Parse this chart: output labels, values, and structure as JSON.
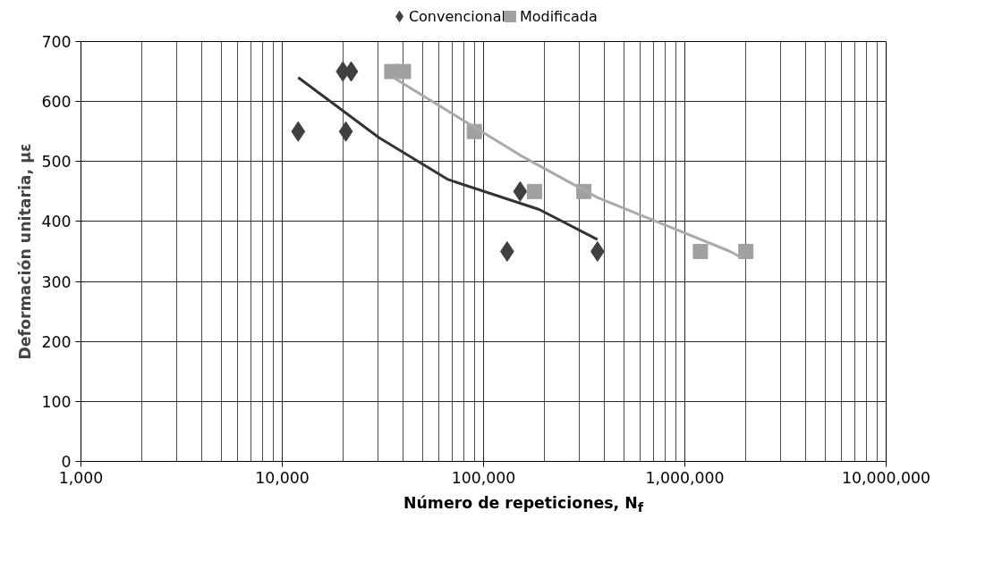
{
  "chart_data": {
    "type": "scatter",
    "xlabel": "Número de repeticiones, N$_{f}$",
    "ylabel": "Deformación unitaria, με",
    "log": "x",
    "grid": true,
    "legend": "top",
    "xlim": [
      1000,
      10000000
    ],
    "ylim": [
      0,
      700
    ],
    "xticks": [
      {
        "value": 1000,
        "label": "1,000"
      },
      {
        "value": 10000,
        "label": "10,000"
      },
      {
        "value": 100000,
        "label": "100,000"
      },
      {
        "value": 1000000,
        "label": "1,000,000"
      },
      {
        "value": 10000000,
        "label": "10,000,000"
      }
    ],
    "yticks": [
      0,
      100,
      200,
      300,
      400,
      500,
      600,
      700
    ],
    "series": [
      {
        "name": "Convencional",
        "color": "#404040",
        "marker": "diamond",
        "x": [
          12000,
          20000,
          22000,
          20700,
          152000,
          131000,
          368000
        ],
        "values": [
          550,
          650,
          650,
          550,
          450,
          350,
          350
        ]
      },
      {
        "name": "Modificada",
        "color": "#a0a0a0",
        "marker": "square",
        "x": [
          35000,
          40000,
          90000,
          179000,
          315000,
          1195000,
          2010000
        ],
        "values": [
          650,
          650,
          550,
          450,
          450,
          350,
          350
        ]
      },
      {
        "type": "line",
        "color": "#333333",
        "x": [
          12000,
          30200,
          66600,
          189000,
          368000
        ],
        "values": [
          640,
          540,
          470,
          420,
          370
        ]
      },
      {
        "type": "line",
        "color": "#aaaaaa",
        "x": [
          35600,
          153000,
          368000,
          1680000,
          1900000
        ],
        "values": [
          640,
          510,
          440,
          350,
          340
        ]
      }
    ]
  }
}
